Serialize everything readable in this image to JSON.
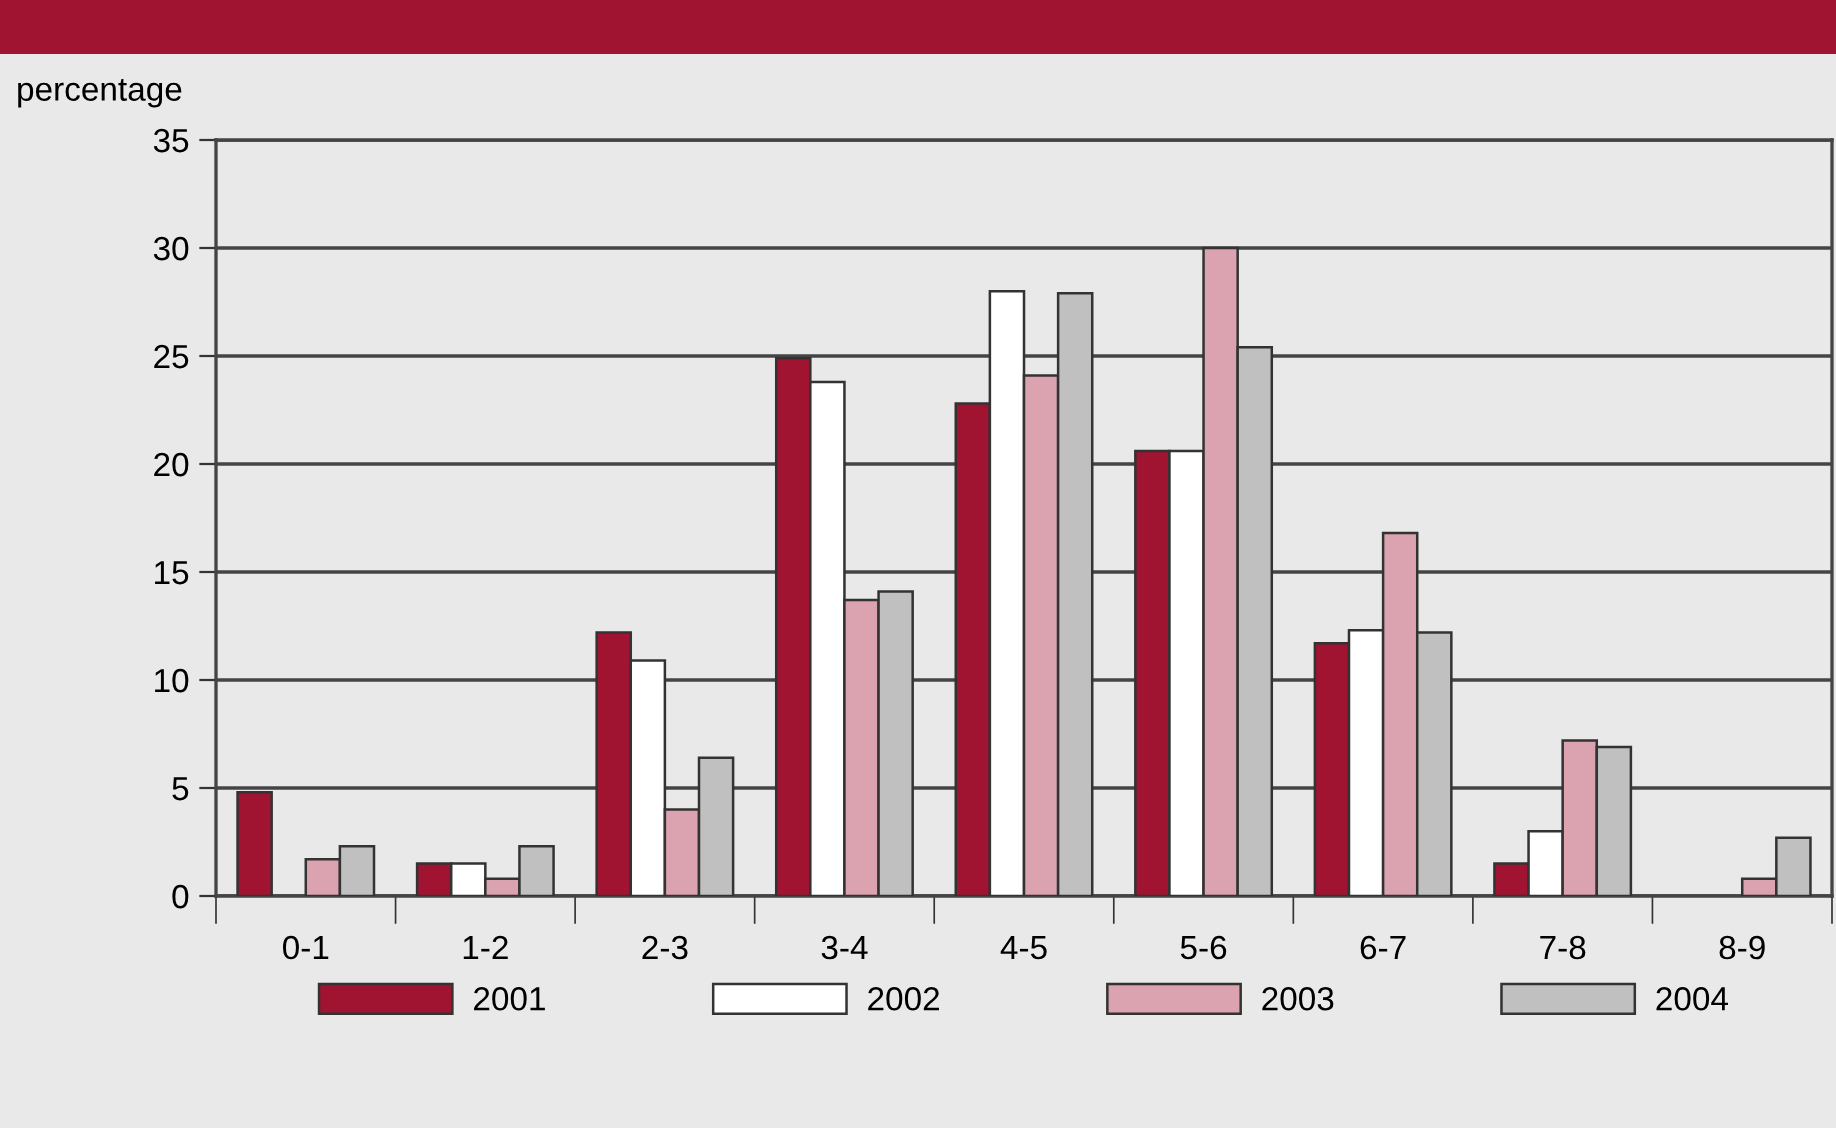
{
  "chart_data": {
    "type": "bar",
    "ylabel": "percentage",
    "categories": [
      "0-1",
      "1-2",
      "2-3",
      "3-4",
      "4-5",
      "5-6",
      "6-7",
      "7-8",
      "8-9"
    ],
    "series": [
      {
        "name": "2001",
        "color": "#a01432",
        "values": [
          4.8,
          1.5,
          12.2,
          24.9,
          22.8,
          20.6,
          11.7,
          1.5,
          null
        ]
      },
      {
        "name": "2002",
        "color": "#ffffff",
        "values": [
          null,
          1.5,
          10.9,
          23.8,
          28.0,
          20.6,
          12.3,
          3.0,
          null
        ]
      },
      {
        "name": "2003",
        "color": "#daa3af",
        "values": [
          1.7,
          0.8,
          4.0,
          13.7,
          24.1,
          30.0,
          16.8,
          7.2,
          0.8
        ]
      },
      {
        "name": "2004",
        "color": "#c0c0c0",
        "values": [
          2.3,
          2.3,
          6.4,
          14.1,
          27.9,
          25.4,
          12.2,
          6.9,
          2.7
        ]
      }
    ],
    "ylim": [
      0,
      35
    ],
    "yticks": [
      0,
      5,
      10,
      15,
      20,
      25,
      30,
      35
    ],
    "grid": "y",
    "legend": "bottom"
  }
}
